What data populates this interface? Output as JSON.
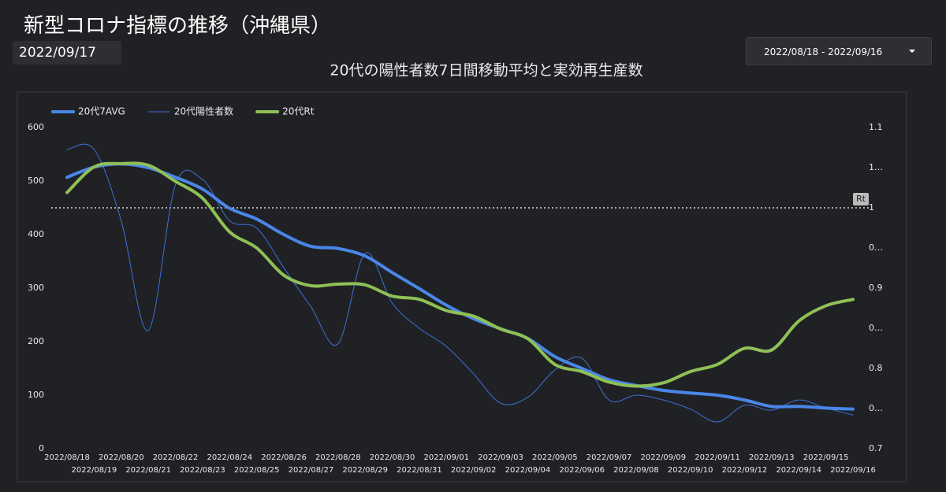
{
  "header": {
    "title": "新型コロナ指標の推移（沖縄県）",
    "date": "2022/09/17",
    "range": "2022/08/18 - 2022/09/16"
  },
  "chart_data": {
    "type": "line",
    "title": "20代の陽性者数7日間移動平均と実効再生産数",
    "categories": [
      "2022/08/18",
      "2022/08/19",
      "2022/08/20",
      "2022/08/21",
      "2022/08/22",
      "2022/08/23",
      "2022/08/24",
      "2022/08/25",
      "2022/08/26",
      "2022/08/27",
      "2022/08/28",
      "2022/08/29",
      "2022/08/30",
      "2022/08/31",
      "2022/09/01",
      "2022/09/02",
      "2022/09/03",
      "2022/09/04",
      "2022/09/05",
      "2022/09/06",
      "2022/09/07",
      "2022/09/08",
      "2022/09/09",
      "2022/09/10",
      "2022/09/11",
      "2022/09/12",
      "2022/09/13",
      "2022/09/14",
      "2022/09/15",
      "2022/09/16"
    ],
    "series": [
      {
        "name": "20代7AVG",
        "color": "#4a86e8",
        "width": 4,
        "values": [
          507,
          526,
          532,
          525,
          507,
          485,
          449,
          429,
          400,
          378,
          374,
          360,
          329,
          299,
          268,
          243,
          224,
          206,
          172,
          150,
          129,
          118,
          109,
          104,
          100,
          91,
          79,
          79,
          76,
          74
        ]
      },
      {
        "name": "20代陽性者数",
        "color": "#3d71d9",
        "width": 1,
        "values": [
          559,
          559,
          426,
          221,
          493,
          503,
          426,
          412,
          338,
          265,
          196,
          365,
          272,
          225,
          191,
          140,
          85,
          96,
          147,
          169,
          91,
          100,
          91,
          74,
          50,
          81,
          72,
          91,
          76,
          63
        ]
      },
      {
        "name": "20代Rt",
        "color": "#8fc057",
        "width": 4,
        "axis": "y2",
        "values": [
          1.019,
          1.051,
          1.055,
          1.053,
          1.033,
          1.012,
          0.97,
          0.95,
          0.916,
          0.903,
          0.905,
          0.904,
          0.89,
          0.886,
          0.872,
          0.865,
          0.849,
          0.837,
          0.805,
          0.796,
          0.783,
          0.778,
          0.782,
          0.796,
          0.805,
          0.825,
          0.823,
          0.859,
          0.878,
          0.886
        ]
      }
    ],
    "ylim": [
      0,
      600
    ],
    "yticks": [
      0,
      100,
      200,
      300,
      400,
      500,
      600
    ],
    "y2lim": [
      0.7,
      1.1
    ],
    "y2ticks": [
      0.7,
      {
        "value": 0.75,
        "label": "0…"
      },
      0.8,
      {
        "value": 0.85,
        "label": "0…"
      },
      0.9,
      {
        "value": 0.95,
        "label": "0…"
      },
      1,
      {
        "value": 1.05,
        "label": "1…"
      },
      1.1
    ],
    "reference_line": {
      "value": 1,
      "label": "Rt",
      "axis": "y2"
    },
    "legend": "top-left"
  }
}
